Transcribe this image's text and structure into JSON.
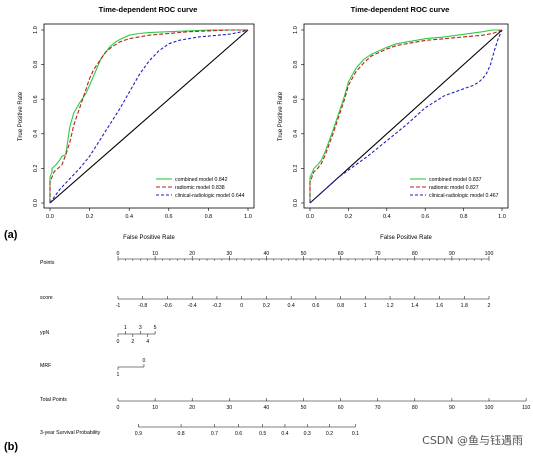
{
  "panel_labels": {
    "a": "(a)",
    "b": "(b)"
  },
  "watermark": "CSDN @鱼与钰遇雨",
  "colors": {
    "combined": "#2ecc40",
    "radiomic": "#b22222",
    "clinical": "#1f1fbf",
    "ref": "#000000"
  },
  "chart_data": [
    {
      "type": "line",
      "title": "Time-dependent ROC curve",
      "xlabel": "False Positive Rate",
      "ylabel": "True Positive Rate",
      "xlim": [
        0,
        1
      ],
      "ylim": [
        0,
        1
      ],
      "xticks": [
        "0.0",
        "0.2",
        "0.4",
        "0.6",
        "0.8",
        "1.0"
      ],
      "yticks": [
        "0.0",
        "0.2",
        "0.4",
        "0.6",
        "0.8",
        "1.0"
      ],
      "legend_position": "bottom-right",
      "series": [
        {
          "name": "combined model 0.842",
          "style": "solid",
          "x": [
            0,
            0,
            0.01,
            0.01,
            0.03,
            0.05,
            0.06,
            0.08,
            0.09,
            0.1,
            0.12,
            0.15,
            0.18,
            0.2,
            0.23,
            0.26,
            0.3,
            0.33,
            0.36,
            0.4,
            0.45,
            0.5,
            0.6,
            0.7,
            0.8,
            0.9,
            1.0
          ],
          "y": [
            0,
            0.15,
            0.18,
            0.2,
            0.22,
            0.25,
            0.27,
            0.28,
            0.36,
            0.44,
            0.52,
            0.58,
            0.63,
            0.68,
            0.76,
            0.84,
            0.9,
            0.93,
            0.95,
            0.97,
            0.98,
            0.985,
            0.99,
            0.995,
            1,
            1,
            1
          ]
        },
        {
          "name": "radiomic model 0.838",
          "style": "dashed",
          "x": [
            0,
            0,
            0.01,
            0.02,
            0.04,
            0.06,
            0.08,
            0.1,
            0.12,
            0.15,
            0.18,
            0.2,
            0.22,
            0.25,
            0.28,
            0.31,
            0.35,
            0.4,
            0.45,
            0.5,
            0.6,
            0.7,
            0.8,
            0.9,
            1.0
          ],
          "y": [
            0,
            0.12,
            0.15,
            0.18,
            0.2,
            0.22,
            0.28,
            0.35,
            0.45,
            0.55,
            0.65,
            0.72,
            0.77,
            0.82,
            0.87,
            0.9,
            0.93,
            0.95,
            0.96,
            0.97,
            0.98,
            0.99,
            0.995,
            1,
            1
          ]
        },
        {
          "name": "clinical-radiologic model 0.644",
          "style": "dotted",
          "x": [
            0,
            0.05,
            0.1,
            0.15,
            0.2,
            0.25,
            0.3,
            0.35,
            0.4,
            0.45,
            0.5,
            0.55,
            0.6,
            0.65,
            0.7,
            0.75,
            0.8,
            0.85,
            0.9,
            0.95,
            1.0
          ],
          "y": [
            0,
            0.08,
            0.14,
            0.2,
            0.27,
            0.36,
            0.45,
            0.54,
            0.64,
            0.74,
            0.82,
            0.88,
            0.92,
            0.94,
            0.95,
            0.96,
            0.965,
            0.97,
            0.975,
            0.985,
            1
          ]
        }
      ]
    },
    {
      "type": "line",
      "title": "Time-dependent ROC curve",
      "xlabel": "False Positive Rate",
      "ylabel": "True Positive Rate",
      "xlim": [
        0,
        1
      ],
      "ylim": [
        0,
        1
      ],
      "xticks": [
        "0.0",
        "0.2",
        "0.4",
        "0.6",
        "0.8",
        "1.0"
      ],
      "yticks": [
        "0.0",
        "0.2",
        "0.4",
        "0.6",
        "0.8",
        "1.0"
      ],
      "legend_position": "bottom-right",
      "series": [
        {
          "name": "combined model 0.837",
          "style": "solid",
          "x": [
            0,
            0,
            0.01,
            0.02,
            0.04,
            0.06,
            0.08,
            0.1,
            0.12,
            0.15,
            0.18,
            0.2,
            0.24,
            0.28,
            0.32,
            0.36,
            0.4,
            0.45,
            0.5,
            0.55,
            0.6,
            0.7,
            0.8,
            0.9,
            0.95,
            1.0
          ],
          "y": [
            0,
            0.15,
            0.17,
            0.2,
            0.22,
            0.25,
            0.3,
            0.36,
            0.42,
            0.52,
            0.62,
            0.7,
            0.78,
            0.83,
            0.86,
            0.88,
            0.9,
            0.92,
            0.93,
            0.94,
            0.95,
            0.96,
            0.975,
            0.99,
            1,
            1
          ]
        },
        {
          "name": "radiomic model 0.827",
          "style": "dashed",
          "x": [
            0,
            0,
            0.01,
            0.02,
            0.04,
            0.06,
            0.08,
            0.1,
            0.12,
            0.15,
            0.18,
            0.2,
            0.24,
            0.28,
            0.32,
            0.36,
            0.4,
            0.45,
            0.5,
            0.55,
            0.6,
            0.7,
            0.8,
            0.9,
            0.95,
            1.0
          ],
          "y": [
            0,
            0.12,
            0.15,
            0.18,
            0.2,
            0.23,
            0.28,
            0.34,
            0.4,
            0.5,
            0.6,
            0.68,
            0.76,
            0.81,
            0.85,
            0.87,
            0.89,
            0.91,
            0.92,
            0.93,
            0.94,
            0.95,
            0.96,
            0.97,
            0.98,
            1
          ]
        },
        {
          "name": "clinical-radiologic model 0.467",
          "style": "dotted",
          "x": [
            0,
            0.02,
            0.05,
            0.1,
            0.15,
            0.2,
            0.3,
            0.4,
            0.5,
            0.6,
            0.7,
            0.75,
            0.8,
            0.85,
            0.88,
            0.9,
            0.92,
            0.94,
            0.96,
            0.98,
            1.0
          ],
          "y": [
            0,
            0.02,
            0.05,
            0.1,
            0.15,
            0.19,
            0.27,
            0.36,
            0.45,
            0.55,
            0.62,
            0.64,
            0.66,
            0.68,
            0.7,
            0.72,
            0.75,
            0.8,
            0.88,
            0.95,
            1
          ]
        }
      ]
    },
    {
      "type": "nomogram",
      "rows": [
        {
          "label": "Points",
          "ticks": [
            "0",
            "10",
            "20",
            "30",
            "40",
            "50",
            "60",
            "70",
            "80",
            "90",
            "100"
          ],
          "positions": [
            0,
            10,
            20,
            30,
            40,
            50,
            60,
            70,
            80,
            90,
            100
          ]
        },
        {
          "label": "score",
          "ticks": [
            "-1",
            "-0.8",
            "-0.6",
            "-0.4",
            "-0.2",
            "0",
            "0.2",
            "0.4",
            "0.6",
            "0.8",
            "1",
            "1.2",
            "1.4",
            "1.6",
            "1.8",
            "2"
          ],
          "positions": [
            0,
            6.67,
            13.33,
            20,
            26.67,
            33.33,
            40,
            46.67,
            53.33,
            60,
            66.67,
            73.33,
            80,
            86.67,
            93.33,
            100
          ]
        },
        {
          "label": "ypN",
          "ticks_above": [
            "1",
            "3",
            "5"
          ],
          "positions_above": [
            2,
            6,
            10
          ],
          "ticks_below": [
            "0",
            "2",
            "4"
          ],
          "positions_below": [
            0,
            4,
            8
          ]
        },
        {
          "label": "MRF",
          "ticks_above": [
            "0"
          ],
          "positions_above": [
            7
          ],
          "ticks_below": [
            "1"
          ],
          "positions_below": [
            0
          ]
        },
        {
          "label": "Total Points",
          "ticks": [
            "0",
            "10",
            "20",
            "30",
            "40",
            "50",
            "60",
            "70",
            "80",
            "90",
            "100",
            "110"
          ],
          "positions": [
            0,
            10,
            20,
            30,
            40,
            50,
            60,
            70,
            80,
            90,
            100,
            110
          ]
        },
        {
          "label": "3-year Survival Probability",
          "ticks": [
            "0.9",
            "0.8",
            "0.7",
            "0.6",
            "0.5",
            "0.4",
            "0.3",
            "0.2",
            "0.1"
          ],
          "positions": [
            5.5,
            17,
            26,
            32.5,
            39,
            45,
            51,
            57,
            64
          ]
        }
      ]
    }
  ]
}
